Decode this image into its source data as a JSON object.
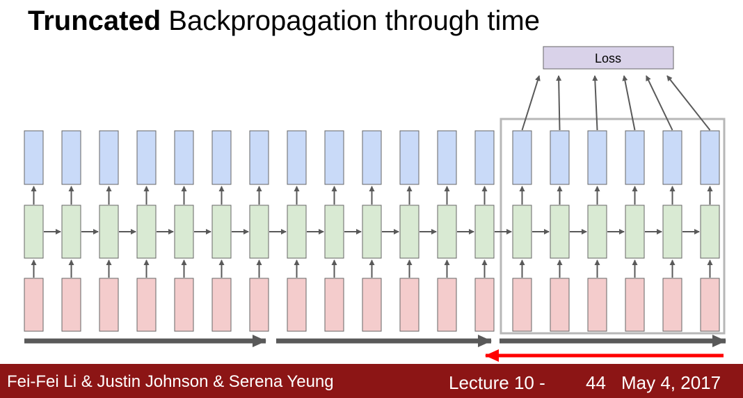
{
  "title": {
    "bold": "Truncated",
    "rest": " Backpropagation through time"
  },
  "diagram": {
    "loss_label": "Loss",
    "timesteps": 19,
    "window_start": 13,
    "colors": {
      "output": "#c9daf8",
      "hidden": "#d9ead3",
      "input": "#f4cccc",
      "loss": "#d9d2e9",
      "box_stroke": "#666666",
      "arrow": "#595959",
      "window": "#b7b7b7",
      "backward_arrow": "#ff0000"
    }
  },
  "footer": {
    "authors": "Fei-Fei Li & Justin Johnson & Serena Yeung",
    "lecture": "Lecture 10 -",
    "page": "44",
    "date": "May 4, 2017",
    "background": "#8c1515"
  }
}
